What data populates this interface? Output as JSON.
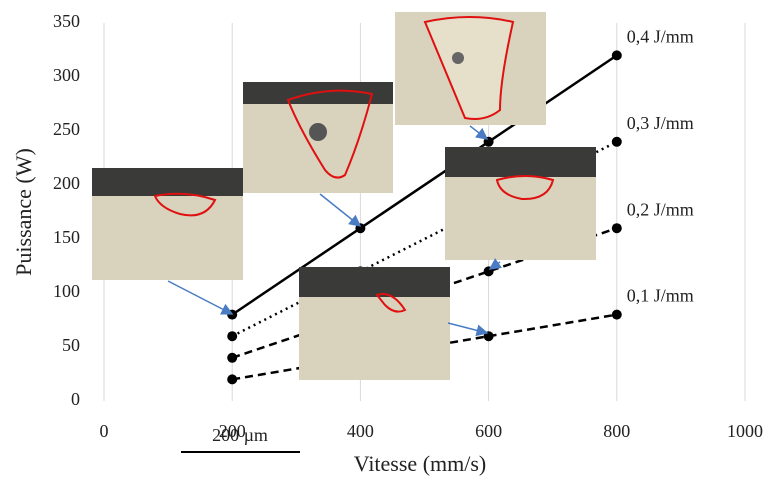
{
  "chart_data": {
    "type": "line",
    "x_label": "Vitesse (mm/s)",
    "y_label": "Puissance (W)",
    "x": [
      200,
      400,
      600,
      800
    ],
    "series": [
      {
        "name": "0,4 J/mm",
        "color": "#000000",
        "style": "solid",
        "values": [
          80,
          160,
          240,
          320
        ]
      },
      {
        "name": "0,3 J/mm",
        "color": "#000000",
        "style": "dotted",
        "values": [
          60,
          120,
          180,
          240
        ]
      },
      {
        "name": "0,2 J/mm",
        "color": "#000000",
        "style": "dashed",
        "values": [
          40,
          80,
          120,
          160
        ]
      },
      {
        "name": "0,1 J/mm",
        "color": "#000000",
        "style": "dashed",
        "values": [
          20,
          40,
          60,
          80
        ]
      }
    ],
    "xlim": [
      0,
      1000
    ],
    "xticks": [
      0,
      200,
      400,
      600,
      800,
      1000
    ],
    "ylim": [
      0,
      350
    ],
    "yticks": [
      0,
      50,
      100,
      150,
      200,
      250,
      300,
      350
    ],
    "grid": "x",
    "scale_bar": "200 µm"
  }
}
